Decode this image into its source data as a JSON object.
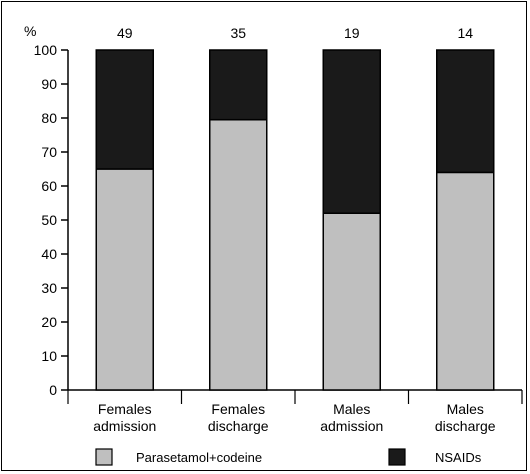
{
  "chart_data": {
    "type": "bar",
    "stacked": true,
    "ylabel": "%",
    "ylim": [
      0,
      100
    ],
    "yticks": [
      0,
      10,
      20,
      30,
      40,
      50,
      60,
      70,
      80,
      90,
      100
    ],
    "grid": false,
    "categories": [
      [
        "Females",
        "admission"
      ],
      [
        "Females",
        "discharge"
      ],
      [
        "Males",
        "admission"
      ],
      [
        "Males",
        "discharge"
      ]
    ],
    "top_labels": [
      "49",
      "35",
      "19",
      "14"
    ],
    "series": [
      {
        "name": "Parasetamol+codeine",
        "values": [
          65,
          79.5,
          52,
          64
        ],
        "color": "#bfbfbf"
      },
      {
        "name": "NSAIDs",
        "values": [
          35,
          20.5,
          48,
          36
        ],
        "color": "#1a1a1a"
      }
    ],
    "legend_position": "bottom"
  }
}
